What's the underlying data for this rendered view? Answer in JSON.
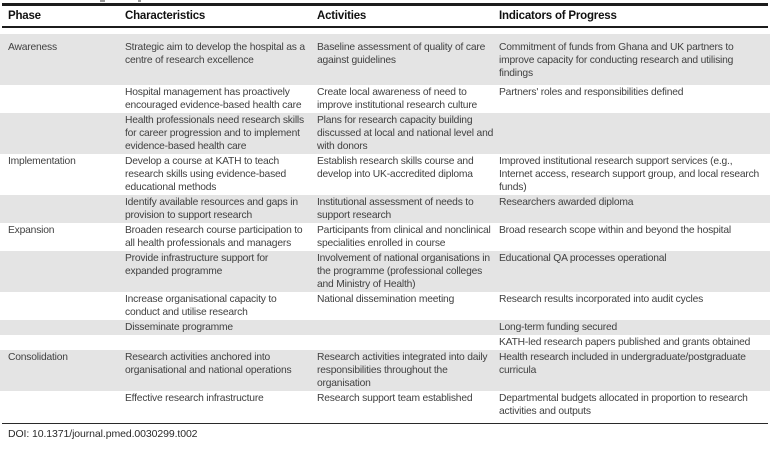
{
  "table": {
    "columns": [
      "Phase",
      "Characteristics",
      "Activities",
      "Indicators of Progress"
    ],
    "rows": [
      {
        "shaded": true,
        "phase": "Awareness",
        "characteristics": "Strategic aim to develop the hospital as a centre of research excellence",
        "activities": "Baseline assessment of quality of care against guidelines",
        "indicators": "Commitment of funds from Ghana and UK partners to improve capacity for conducting research and utilising findings"
      },
      {
        "shaded": false,
        "phase": "",
        "characteristics": "Hospital management has proactively encouraged evidence-based health care",
        "activities": "Create local awareness of need to improve institutional research culture",
        "indicators": "Partners' roles and responsibilities defined"
      },
      {
        "shaded": true,
        "phase": "",
        "characteristics": "Health professionals need research skills for career progression and to implement evidence-based health care",
        "activities": "Plans for research capacity building discussed at local and national level and with donors",
        "indicators": ""
      },
      {
        "shaded": false,
        "phase": "Implementation",
        "characteristics": "Develop a course at KATH to teach research skills using evidence-based educational methods",
        "activities": "Establish research skills course and develop into UK-accredited diploma",
        "indicators": "Improved institutional research support services (e.g., Internet access, research support group, and local research funds)"
      },
      {
        "shaded": true,
        "phase": "",
        "characteristics": "Identify available resources and gaps in provision to support research",
        "activities": "Institutional assessment of needs to support research",
        "indicators": "Researchers awarded diploma"
      },
      {
        "shaded": false,
        "phase": "Expansion",
        "characteristics": "Broaden research course participation to all health professionals and managers",
        "activities": "Participants from clinical and nonclinical specialities enrolled in course",
        "indicators": "Broad research scope within and beyond the hospital"
      },
      {
        "shaded": true,
        "phase": "",
        "characteristics": "Provide infrastructure support for expanded programme",
        "activities": "Involvement of national organisations in the programme (professional colleges and Ministry of Health)",
        "indicators": "Educational QA processes operational"
      },
      {
        "shaded": false,
        "phase": "",
        "characteristics": "Increase organisational capacity to conduct and utilise research",
        "activities": "National dissemination meeting",
        "indicators": "Research results incorporated into audit cycles"
      },
      {
        "shaded": true,
        "phase": "",
        "characteristics": "Disseminate programme",
        "activities": "",
        "indicators": "Long-term funding secured"
      },
      {
        "shaded": false,
        "phase": "",
        "characteristics": "",
        "activities": "",
        "indicators": "KATH-led research papers published and grants obtained"
      },
      {
        "shaded": true,
        "phase": "Consolidation",
        "characteristics": "Research activities anchored into organisational and national operations",
        "activities": "Research activities integrated into daily responsibilities throughout the organisation",
        "indicators": "Health research included in undergraduate/postgraduate curricula"
      },
      {
        "shaded": false,
        "phase": "",
        "characteristics": "Effective research infrastructure",
        "activities": "Research support team established",
        "indicators": "Departmental budgets allocated in proportion to research activities and outputs"
      }
    ]
  },
  "footer": {
    "doi_line": "DOI: 10.1371/journal.pmed.0030299.t002"
  },
  "colors": {
    "row_shade": "#e4e4e4",
    "rule": "#1c1c1c",
    "body_text": "#414141",
    "header_text": "#111111"
  }
}
